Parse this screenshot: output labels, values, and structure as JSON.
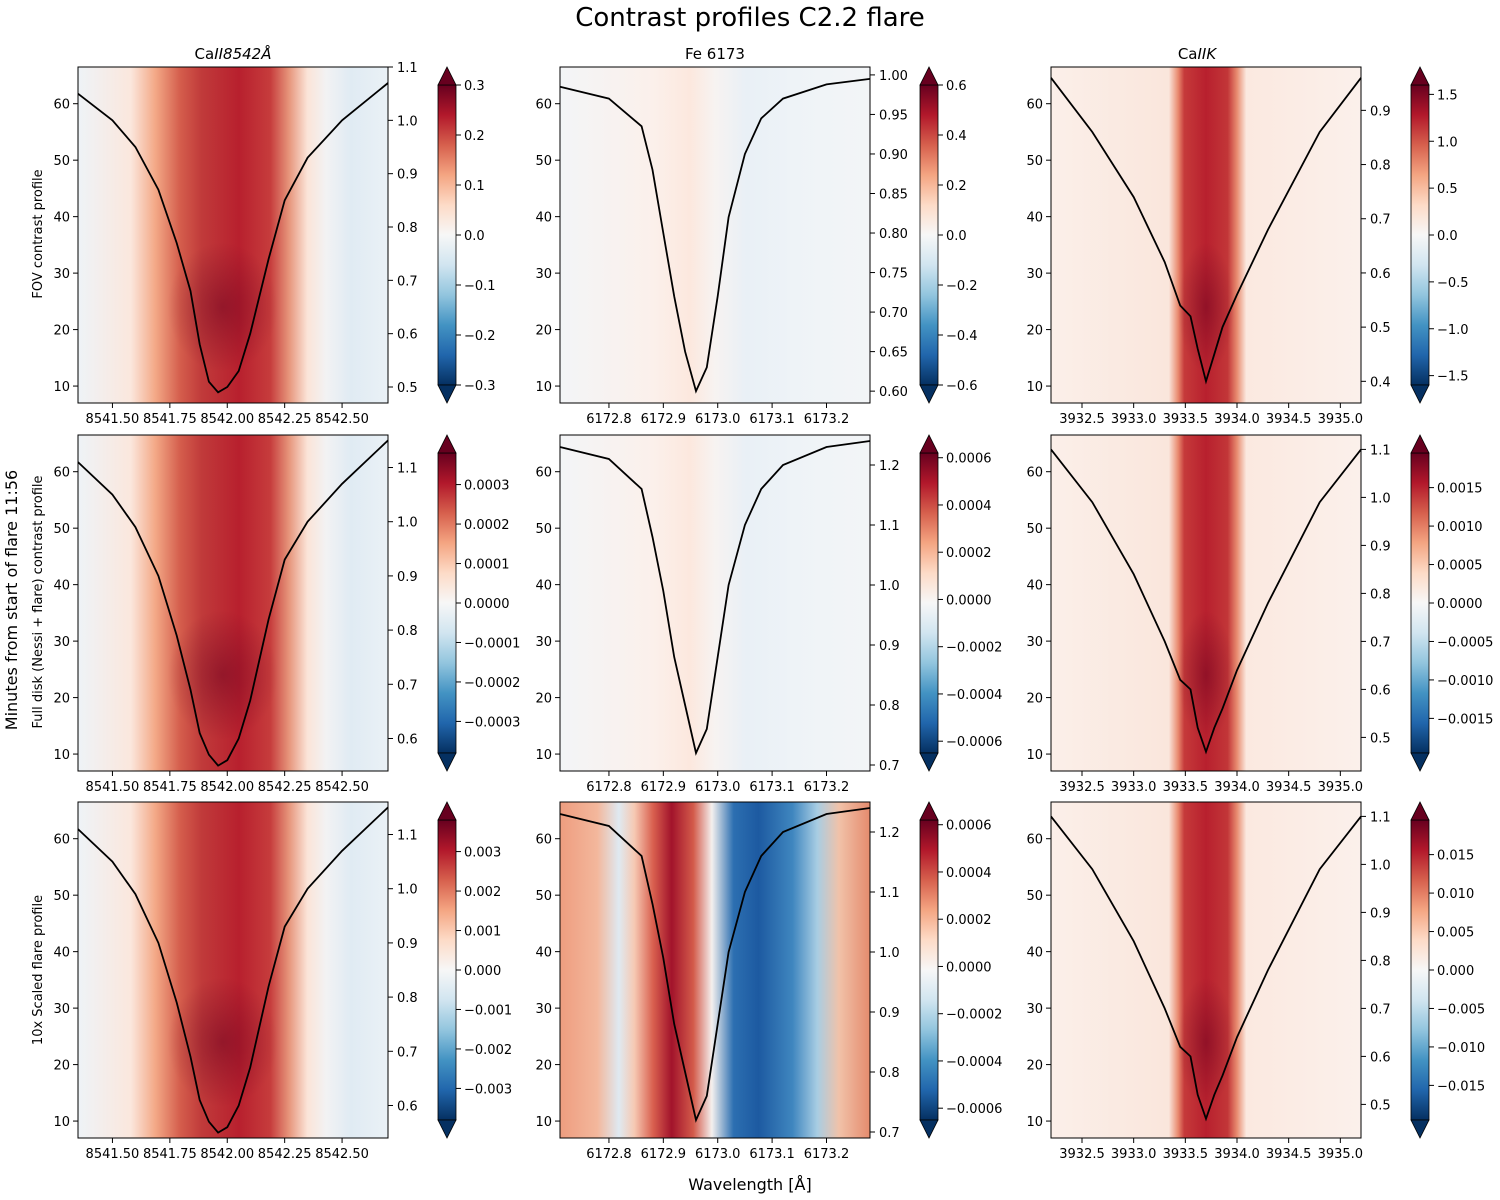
{
  "figure": {
    "title": "Contrast profiles C2.2 flare",
    "xlabel": "Wavelength [Å]",
    "ylabel": "Minutes from start of flare 11:56"
  },
  "columns": [
    {
      "title_main": "Ca",
      "title_italic": "II8542Å"
    },
    {
      "title_main": "Fe 6173",
      "title_italic": ""
    },
    {
      "title_main": "Ca",
      "title_italic": "IIK"
    }
  ],
  "rows": [
    {
      "label": "FOV contrast profile"
    },
    {
      "label": "Full disk (Nessi + flare) contrast profile"
    },
    {
      "label": "10x Scaled flare profile"
    }
  ],
  "colors": {
    "cmap_low": "#053061",
    "cmap_mid": "#f7f7f7",
    "cmap_high": "#67001f",
    "profile_line": "#000000"
  },
  "chart_data": [
    {
      "type": "heatmap",
      "row": 0,
      "col": 0,
      "xlim": [
        8541.35,
        8542.7
      ],
      "ylim": [
        7,
        66.5
      ],
      "x_ticks": [
        8541.5,
        8541.75,
        8542.0,
        8542.25,
        8542.5
      ],
      "x_tick_labels": [
        "8541.50",
        "8541.75",
        "8542.00",
        "8542.25",
        "8542.50"
      ],
      "y_ticks": [
        10,
        20,
        30,
        40,
        50,
        60
      ],
      "y_tick_labels": [
        "10",
        "20",
        "30",
        "40",
        "50",
        "60"
      ],
      "right_ylim": [
        0.47,
        1.1
      ],
      "right_ticks": [
        0.5,
        0.6,
        0.7,
        0.8,
        0.9,
        1.0,
        1.1
      ],
      "right_tick_labels": [
        "0.5",
        "0.6",
        "0.7",
        "0.8",
        "0.9",
        "1.0",
        "1.1"
      ],
      "cbar_lim": [
        -0.3,
        0.3
      ],
      "cbar_ticks": [
        -0.3,
        -0.2,
        -0.1,
        0.0,
        0.1,
        0.2,
        0.3
      ],
      "cbar_tick_labels": [
        "−0.3",
        "−0.2",
        "−0.1",
        "0.0",
        "0.1",
        "0.2",
        "0.3"
      ],
      "profile_line": {
        "x": [
          8541.35,
          8541.5,
          8541.6,
          8541.7,
          8541.78,
          8541.84,
          8541.88,
          8541.92,
          8541.96,
          8542.0,
          8542.05,
          8542.1,
          8542.18,
          8542.25,
          8542.35,
          8542.5,
          8542.7
        ],
        "y": [
          1.05,
          1.0,
          0.95,
          0.87,
          0.77,
          0.68,
          0.58,
          0.51,
          0.49,
          0.5,
          0.53,
          0.6,
          0.74,
          0.85,
          0.93,
          1.0,
          1.07
        ]
      }
    },
    {
      "type": "heatmap",
      "row": 0,
      "col": 1,
      "xlim": [
        6172.71,
        6173.28
      ],
      "ylim": [
        7,
        66.5
      ],
      "x_ticks": [
        6172.8,
        6172.9,
        6173.0,
        6173.1,
        6173.2
      ],
      "x_tick_labels": [
        "6172.8",
        "6172.9",
        "6173.0",
        "6173.1",
        "6173.2"
      ],
      "y_ticks": [
        10,
        20,
        30,
        40,
        50,
        60
      ],
      "y_tick_labels": [
        "10",
        "20",
        "30",
        "40",
        "50",
        "60"
      ],
      "right_ylim": [
        0.585,
        1.01
      ],
      "right_ticks": [
        0.6,
        0.65,
        0.7,
        0.75,
        0.8,
        0.85,
        0.9,
        0.95,
        1.0
      ],
      "right_tick_labels": [
        "0.60",
        "0.65",
        "0.70",
        "0.75",
        "0.80",
        "0.85",
        "0.90",
        "0.95",
        "1.00"
      ],
      "cbar_lim": [
        -0.6,
        0.6
      ],
      "cbar_ticks": [
        -0.6,
        -0.4,
        -0.2,
        0.0,
        0.2,
        0.4,
        0.6
      ],
      "cbar_tick_labels": [
        "−0.6",
        "−0.4",
        "−0.2",
        "0.0",
        "0.2",
        "0.4",
        "0.6"
      ],
      "profile_line": {
        "x": [
          6172.71,
          6172.8,
          6172.86,
          6172.88,
          6172.9,
          6172.92,
          6172.94,
          6172.96,
          6172.98,
          6173.0,
          6173.02,
          6173.05,
          6173.08,
          6173.12,
          6173.2,
          6173.28
        ],
        "y": [
          0.985,
          0.97,
          0.935,
          0.88,
          0.8,
          0.72,
          0.65,
          0.6,
          0.63,
          0.72,
          0.82,
          0.9,
          0.945,
          0.97,
          0.988,
          0.995
        ]
      }
    },
    {
      "type": "heatmap",
      "row": 0,
      "col": 2,
      "xlim": [
        3932.2,
        3935.2
      ],
      "ylim": [
        7,
        66.5
      ],
      "x_ticks": [
        3932.5,
        3933.0,
        3933.5,
        3934.0,
        3934.5,
        3935.0
      ],
      "x_tick_labels": [
        "3932.5",
        "3933.0",
        "3933.5",
        "3934.0",
        "3934.5",
        "3935.0"
      ],
      "y_ticks": [
        10,
        20,
        30,
        40,
        50,
        60
      ],
      "y_tick_labels": [
        "10",
        "20",
        "30",
        "40",
        "50",
        "60"
      ],
      "right_ylim": [
        0.36,
        0.98
      ],
      "right_ticks": [
        0.4,
        0.5,
        0.6,
        0.7,
        0.8,
        0.9
      ],
      "right_tick_labels": [
        "0.4",
        "0.5",
        "0.6",
        "0.7",
        "0.8",
        "0.9"
      ],
      "cbar_lim": [
        -1.6,
        1.6
      ],
      "cbar_ticks": [
        -1.5,
        -1.0,
        -0.5,
        0.0,
        0.5,
        1.0,
        1.5
      ],
      "cbar_tick_labels": [
        "−1.5",
        "−1.0",
        "−0.5",
        "0.0",
        "0.5",
        "1.0",
        "1.5"
      ],
      "profile_line": {
        "x": [
          3932.2,
          3932.6,
          3933.0,
          3933.3,
          3933.45,
          3933.55,
          3933.62,
          3933.7,
          3933.78,
          3933.86,
          3934.0,
          3934.3,
          3934.8,
          3935.2
        ],
        "y": [
          0.96,
          0.86,
          0.74,
          0.62,
          0.54,
          0.52,
          0.46,
          0.4,
          0.45,
          0.5,
          0.56,
          0.68,
          0.86,
          0.96
        ]
      }
    },
    {
      "type": "heatmap",
      "row": 1,
      "col": 0,
      "xlim": [
        8541.35,
        8542.7
      ],
      "ylim": [
        7,
        66.5
      ],
      "x_ticks": [
        8541.5,
        8541.75,
        8542.0,
        8542.25,
        8542.5
      ],
      "x_tick_labels": [
        "8541.50",
        "8541.75",
        "8542.00",
        "8542.25",
        "8542.50"
      ],
      "y_ticks": [
        10,
        20,
        30,
        40,
        50,
        60
      ],
      "y_tick_labels": [
        "10",
        "20",
        "30",
        "40",
        "50",
        "60"
      ],
      "right_ylim": [
        0.54,
        1.16
      ],
      "right_ticks": [
        0.6,
        0.7,
        0.8,
        0.9,
        1.0,
        1.1
      ],
      "right_tick_labels": [
        "0.6",
        "0.7",
        "0.8",
        "0.9",
        "1.0",
        "1.1"
      ],
      "cbar_lim": [
        -0.00038,
        0.00038
      ],
      "cbar_ticks": [
        -0.0003,
        -0.0002,
        -0.0001,
        0.0,
        0.0001,
        0.0002,
        0.0003
      ],
      "cbar_tick_labels": [
        "−0.0003",
        "−0.0002",
        "−0.0001",
        "0.0000",
        "0.0001",
        "0.0002",
        "0.0003"
      ],
      "profile_line": {
        "x": [
          8541.35,
          8541.5,
          8541.6,
          8541.7,
          8541.78,
          8541.84,
          8541.88,
          8541.92,
          8541.96,
          8542.0,
          8542.05,
          8542.1,
          8542.18,
          8542.25,
          8542.35,
          8542.5,
          8542.7
        ],
        "y": [
          1.11,
          1.05,
          0.99,
          0.9,
          0.79,
          0.69,
          0.61,
          0.57,
          0.55,
          0.56,
          0.6,
          0.67,
          0.82,
          0.93,
          1.0,
          1.07,
          1.15
        ]
      }
    },
    {
      "type": "heatmap",
      "row": 1,
      "col": 1,
      "xlim": [
        6172.71,
        6173.28
      ],
      "ylim": [
        7,
        66.5
      ],
      "x_ticks": [
        6172.8,
        6172.9,
        6173.0,
        6173.1,
        6173.2
      ],
      "x_tick_labels": [
        "6172.8",
        "6172.9",
        "6173.0",
        "6173.1",
        "6173.2"
      ],
      "y_ticks": [
        10,
        20,
        30,
        40,
        50,
        60
      ],
      "y_tick_labels": [
        "10",
        "20",
        "30",
        "40",
        "50",
        "60"
      ],
      "right_ylim": [
        0.69,
        1.25
      ],
      "right_ticks": [
        0.7,
        0.8,
        0.9,
        1.0,
        1.1,
        1.2
      ],
      "right_tick_labels": [
        "0.7",
        "0.8",
        "0.9",
        "1.0",
        "1.1",
        "1.2"
      ],
      "cbar_lim": [
        -0.00065,
        0.00062
      ],
      "cbar_ticks": [
        -0.0006,
        -0.0004,
        -0.0002,
        0.0,
        0.0002,
        0.0004,
        0.0006
      ],
      "cbar_tick_labels": [
        "−0.0006",
        "−0.0004",
        "−0.0002",
        "0.0000",
        "0.0002",
        "0.0004",
        "0.0006"
      ],
      "profile_line": {
        "x": [
          6172.71,
          6172.8,
          6172.86,
          6172.88,
          6172.9,
          6172.92,
          6172.94,
          6172.96,
          6172.98,
          6173.0,
          6173.02,
          6173.05,
          6173.08,
          6173.12,
          6173.2,
          6173.28
        ],
        "y": [
          1.23,
          1.21,
          1.16,
          1.08,
          0.99,
          0.88,
          0.8,
          0.72,
          0.76,
          0.88,
          1.0,
          1.1,
          1.16,
          1.2,
          1.23,
          1.24
        ]
      }
    },
    {
      "type": "heatmap",
      "row": 1,
      "col": 2,
      "xlim": [
        3932.2,
        3935.2
      ],
      "ylim": [
        7,
        66.5
      ],
      "x_ticks": [
        3932.5,
        3933.0,
        3933.5,
        3934.0,
        3934.5,
        3935.0
      ],
      "x_tick_labels": [
        "3932.5",
        "3933.0",
        "3933.5",
        "3934.0",
        "3934.5",
        "3935.0"
      ],
      "y_ticks": [
        10,
        20,
        30,
        40,
        50,
        60
      ],
      "y_tick_labels": [
        "10",
        "20",
        "30",
        "40",
        "50",
        "60"
      ],
      "right_ylim": [
        0.43,
        1.13
      ],
      "right_ticks": [
        0.5,
        0.6,
        0.7,
        0.8,
        0.9,
        1.0,
        1.1
      ],
      "right_tick_labels": [
        "0.5",
        "0.6",
        "0.7",
        "0.8",
        "0.9",
        "1.0",
        "1.1"
      ],
      "cbar_lim": [
        -0.00195,
        0.00195
      ],
      "cbar_ticks": [
        -0.0015,
        -0.001,
        -0.0005,
        0.0,
        0.0005,
        0.001,
        0.0015
      ],
      "cbar_tick_labels": [
        "−0.0015",
        "−0.0010",
        "−0.0005",
        "0.0000",
        "0.0005",
        "0.0010",
        "0.0015"
      ],
      "profile_line": {
        "x": [
          3932.2,
          3932.6,
          3933.0,
          3933.3,
          3933.45,
          3933.55,
          3933.62,
          3933.7,
          3933.78,
          3933.86,
          3934.0,
          3934.3,
          3934.8,
          3935.2
        ],
        "y": [
          1.1,
          0.99,
          0.84,
          0.7,
          0.62,
          0.6,
          0.52,
          0.47,
          0.52,
          0.56,
          0.64,
          0.78,
          0.99,
          1.1
        ]
      }
    },
    {
      "type": "heatmap",
      "row": 2,
      "col": 0,
      "xlim": [
        8541.35,
        8542.7
      ],
      "ylim": [
        7,
        66.5
      ],
      "x_ticks": [
        8541.5,
        8541.75,
        8542.0,
        8542.25,
        8542.5
      ],
      "x_tick_labels": [
        "8541.50",
        "8541.75",
        "8542.00",
        "8542.25",
        "8542.50"
      ],
      "y_ticks": [
        10,
        20,
        30,
        40,
        50,
        60
      ],
      "y_tick_labels": [
        "10",
        "20",
        "30",
        "40",
        "50",
        "60"
      ],
      "right_ylim": [
        0.54,
        1.16
      ],
      "right_ticks": [
        0.6,
        0.7,
        0.8,
        0.9,
        1.0,
        1.1
      ],
      "right_tick_labels": [
        "0.6",
        "0.7",
        "0.8",
        "0.9",
        "1.0",
        "1.1"
      ],
      "cbar_lim": [
        -0.0038,
        0.0038
      ],
      "cbar_ticks": [
        -0.003,
        -0.002,
        -0.001,
        0.0,
        0.001,
        0.002,
        0.003
      ],
      "cbar_tick_labels": [
        "−0.003",
        "−0.002",
        "−0.001",
        "0.000",
        "0.001",
        "0.002",
        "0.003"
      ],
      "profile_line": {
        "x": [
          8541.35,
          8541.5,
          8541.6,
          8541.7,
          8541.78,
          8541.84,
          8541.88,
          8541.92,
          8541.96,
          8542.0,
          8542.05,
          8542.1,
          8542.18,
          8542.25,
          8542.35,
          8542.5,
          8542.7
        ],
        "y": [
          1.11,
          1.05,
          0.99,
          0.9,
          0.79,
          0.69,
          0.61,
          0.57,
          0.55,
          0.56,
          0.6,
          0.67,
          0.82,
          0.93,
          1.0,
          1.07,
          1.15
        ]
      }
    },
    {
      "type": "heatmap",
      "row": 2,
      "col": 1,
      "xlim": [
        6172.71,
        6173.28
      ],
      "ylim": [
        7,
        66.5
      ],
      "x_ticks": [
        6172.8,
        6172.9,
        6173.0,
        6173.1,
        6173.2
      ],
      "x_tick_labels": [
        "6172.8",
        "6172.9",
        "6173.0",
        "6173.1",
        "6173.2"
      ],
      "y_ticks": [
        10,
        20,
        30,
        40,
        50,
        60
      ],
      "y_tick_labels": [
        "10",
        "20",
        "30",
        "40",
        "50",
        "60"
      ],
      "right_ylim": [
        0.69,
        1.25
      ],
      "right_ticks": [
        0.7,
        0.8,
        0.9,
        1.0,
        1.1,
        1.2
      ],
      "right_tick_labels": [
        "0.7",
        "0.8",
        "0.9",
        "1.0",
        "1.1",
        "1.2"
      ],
      "cbar_lim": [
        -0.00065,
        0.00062
      ],
      "cbar_ticks": [
        -0.0006,
        -0.0004,
        -0.0002,
        0.0,
        0.0002,
        0.0004,
        0.0006
      ],
      "cbar_tick_labels": [
        "−0.0006",
        "−0.0004",
        "−0.0002",
        "0.0000",
        "0.0002",
        "0.0004",
        "0.0006"
      ],
      "profile_line": {
        "x": [
          6172.71,
          6172.8,
          6172.86,
          6172.88,
          6172.9,
          6172.92,
          6172.94,
          6172.96,
          6172.98,
          6173.0,
          6173.02,
          6173.05,
          6173.08,
          6173.12,
          6173.2,
          6173.28
        ],
        "y": [
          1.23,
          1.21,
          1.16,
          1.08,
          0.99,
          0.88,
          0.8,
          0.72,
          0.76,
          0.88,
          1.0,
          1.1,
          1.16,
          1.2,
          1.23,
          1.24
        ]
      }
    },
    {
      "type": "heatmap",
      "row": 2,
      "col": 2,
      "xlim": [
        3932.2,
        3935.2
      ],
      "ylim": [
        7,
        66.5
      ],
      "x_ticks": [
        3932.5,
        3933.0,
        3933.5,
        3934.0,
        3934.5,
        3935.0
      ],
      "x_tick_labels": [
        "3932.5",
        "3933.0",
        "3933.5",
        "3934.0",
        "3934.5",
        "3935.0"
      ],
      "y_ticks": [
        10,
        20,
        30,
        40,
        50,
        60
      ],
      "y_tick_labels": [
        "10",
        "20",
        "30",
        "40",
        "50",
        "60"
      ],
      "right_ylim": [
        0.43,
        1.13
      ],
      "right_ticks": [
        0.5,
        0.6,
        0.7,
        0.8,
        0.9,
        1.0,
        1.1
      ],
      "right_tick_labels": [
        "0.5",
        "0.6",
        "0.7",
        "0.8",
        "0.9",
        "1.0",
        "1.1"
      ],
      "cbar_lim": [
        -0.0195,
        0.0195
      ],
      "cbar_ticks": [
        -0.015,
        -0.01,
        -0.005,
        0.0,
        0.005,
        0.01,
        0.015
      ],
      "cbar_tick_labels": [
        "−0.015",
        "−0.010",
        "−0.005",
        "0.000",
        "0.005",
        "0.010",
        "0.015"
      ],
      "profile_line": {
        "x": [
          3932.2,
          3932.6,
          3933.0,
          3933.3,
          3933.45,
          3933.55,
          3933.62,
          3933.7,
          3933.78,
          3933.86,
          3934.0,
          3934.3,
          3934.8,
          3935.2
        ],
        "y": [
          1.1,
          0.99,
          0.84,
          0.7,
          0.62,
          0.6,
          0.52,
          0.47,
          0.52,
          0.56,
          0.64,
          0.78,
          0.99,
          1.1
        ]
      }
    }
  ]
}
